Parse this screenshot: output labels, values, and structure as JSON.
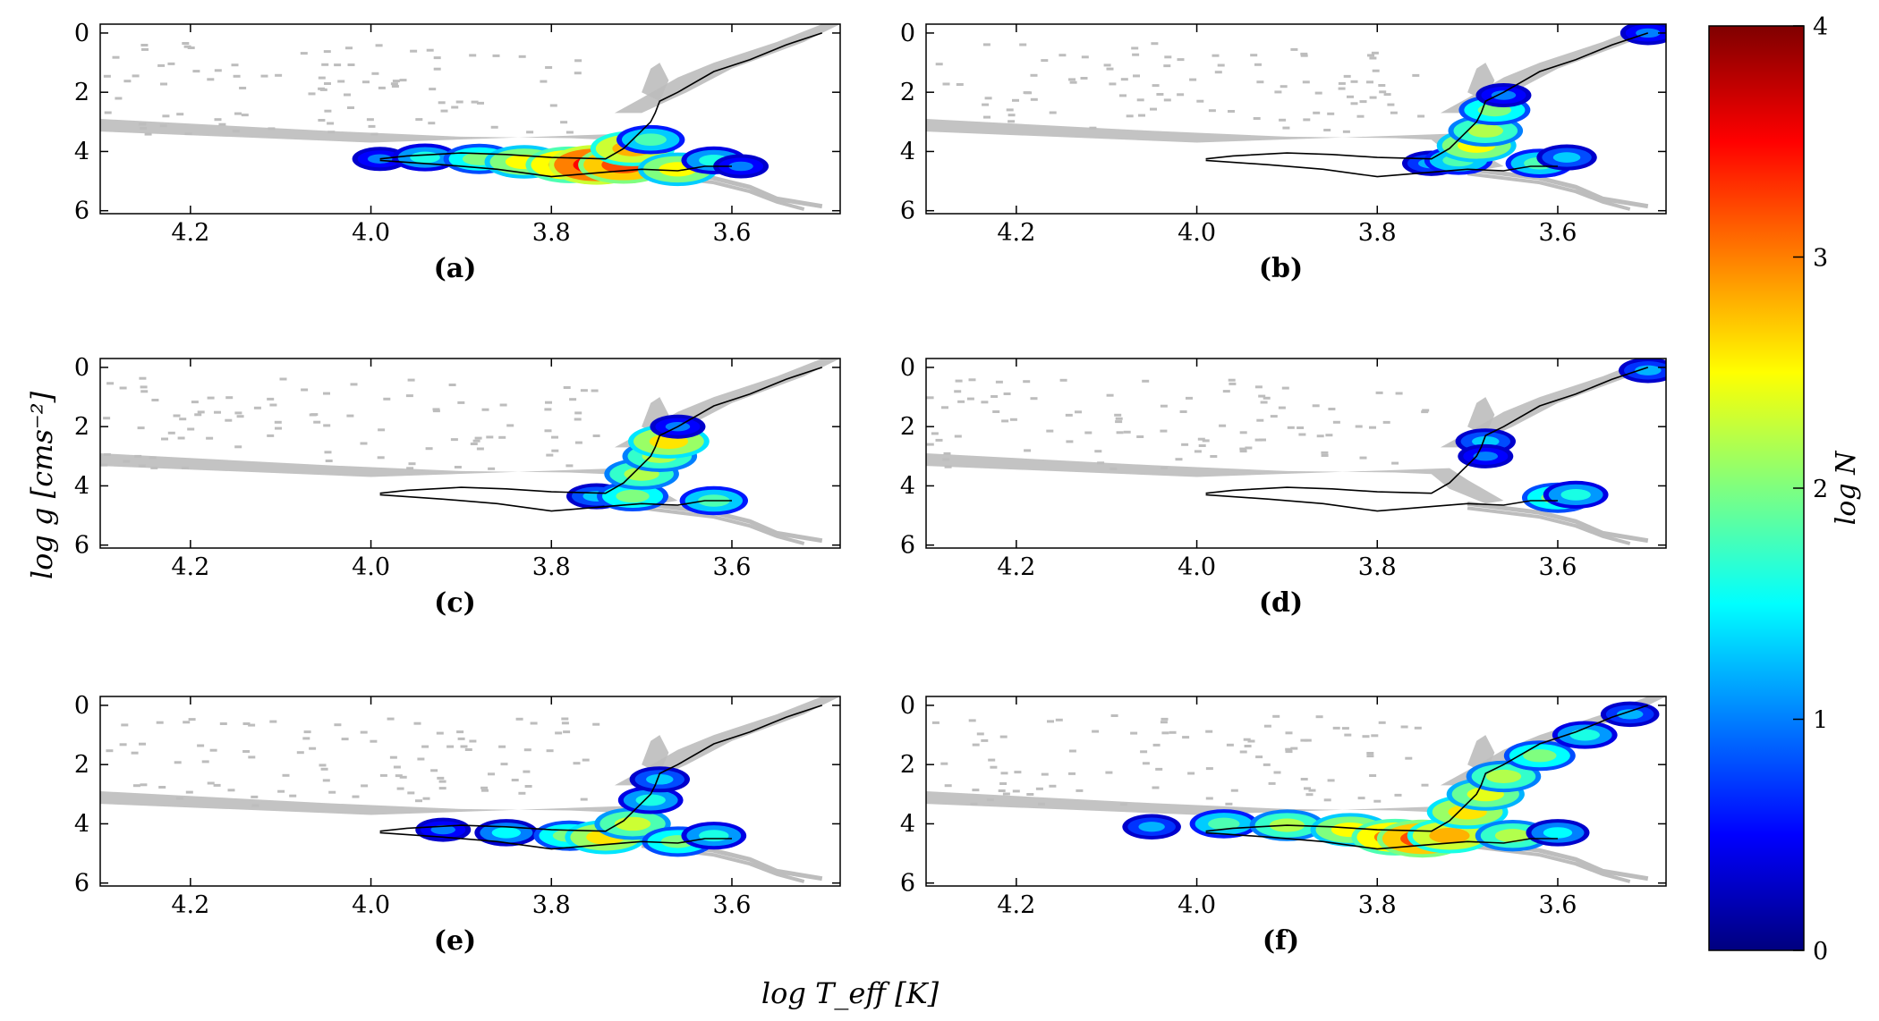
{
  "figure": {
    "ylabel": "log g [cms⁻²]",
    "xlabel": "log T_eff [K]",
    "colorbar": {
      "label": "log N",
      "range": [
        0,
        4
      ],
      "ticks": [
        0,
        1,
        2,
        3,
        4
      ],
      "colormap": "jet",
      "colors": [
        "#00007f",
        "#0000ff",
        "#007fff",
        "#00ffff",
        "#7fff7f",
        "#ffff00",
        "#ff7f00",
        "#ff0000",
        "#7f0000"
      ]
    },
    "background_color": "#bdbdbd",
    "contour_color": "#000000"
  },
  "chart_data": [
    {
      "panel": "(a)",
      "type": "heatmap",
      "xlim": [
        4.3,
        3.48
      ],
      "ylim": [
        6.1,
        -0.3
      ],
      "xticks": [
        4.2,
        4.0,
        3.8,
        3.6
      ],
      "yticks": [
        0,
        2,
        4,
        6
      ],
      "xlabel": "log T_eff [K]",
      "ylabel": "log g [cms^-2]",
      "density_peak_logN": 3.5,
      "density_ridge": [
        {
          "teff": 3.99,
          "logg": 4.25,
          "logN": 1.0
        },
        {
          "teff": 3.94,
          "logg": 4.2,
          "logN": 1.6
        },
        {
          "teff": 3.88,
          "logg": 4.25,
          "logN": 2.0
        },
        {
          "teff": 3.83,
          "logg": 4.35,
          "logN": 2.5
        },
        {
          "teff": 3.78,
          "logg": 4.45,
          "logN": 3.0
        },
        {
          "teff": 3.75,
          "logg": 4.45,
          "logN": 3.5
        },
        {
          "teff": 3.72,
          "logg": 4.45,
          "logN": 3.2
        },
        {
          "teff": 3.71,
          "logg": 3.9,
          "logN": 2.8
        },
        {
          "teff": 3.69,
          "logg": 3.6,
          "logN": 1.8
        },
        {
          "teff": 3.66,
          "logg": 4.6,
          "logN": 2.5
        },
        {
          "teff": 3.62,
          "logg": 4.3,
          "logN": 1.6
        },
        {
          "teff": 3.59,
          "logg": 4.5,
          "logN": 1.0
        }
      ]
    },
    {
      "panel": "(b)",
      "type": "heatmap",
      "xlim": [
        4.3,
        3.48
      ],
      "ylim": [
        6.1,
        -0.3
      ],
      "xticks": [
        4.2,
        4.0,
        3.8,
        3.6
      ],
      "yticks": [
        0,
        2,
        4,
        6
      ],
      "density_peak_logN": 2.7,
      "density_ridge": [
        {
          "teff": 3.74,
          "logg": 4.4,
          "logN": 1.2
        },
        {
          "teff": 3.71,
          "logg": 4.3,
          "logN": 1.8
        },
        {
          "teff": 3.69,
          "logg": 3.8,
          "logN": 2.5
        },
        {
          "teff": 3.68,
          "logg": 3.3,
          "logN": 2.2
        },
        {
          "teff": 3.67,
          "logg": 2.6,
          "logN": 2.0
        },
        {
          "teff": 3.66,
          "logg": 2.1,
          "logN": 1.0
        },
        {
          "teff": 3.62,
          "logg": 4.4,
          "logN": 1.8
        },
        {
          "teff": 3.59,
          "logg": 4.2,
          "logN": 1.3
        },
        {
          "teff": 3.5,
          "logg": 0.0,
          "logN": 1.0
        }
      ]
    },
    {
      "panel": "(c)",
      "type": "heatmap",
      "xlim": [
        4.3,
        3.48
      ],
      "ylim": [
        6.1,
        -0.3
      ],
      "xticks": [
        4.2,
        4.0,
        3.8,
        3.6
      ],
      "yticks": [
        0,
        2,
        4,
        6
      ],
      "density_peak_logN": 2.6,
      "density_ridge": [
        {
          "teff": 3.75,
          "logg": 4.35,
          "logN": 1.3
        },
        {
          "teff": 3.71,
          "logg": 4.35,
          "logN": 2.0
        },
        {
          "teff": 3.7,
          "logg": 3.6,
          "logN": 2.2
        },
        {
          "teff": 3.68,
          "logg": 3.0,
          "logN": 2.2
        },
        {
          "teff": 3.67,
          "logg": 2.5,
          "logN": 2.6
        },
        {
          "teff": 3.66,
          "logg": 2.0,
          "logN": 1.0
        },
        {
          "teff": 3.62,
          "logg": 4.5,
          "logN": 1.8
        }
      ]
    },
    {
      "panel": "(d)",
      "type": "heatmap",
      "xlim": [
        4.3,
        3.48
      ],
      "ylim": [
        6.1,
        -0.3
      ],
      "xticks": [
        4.2,
        4.0,
        3.8,
        3.6
      ],
      "yticks": [
        0,
        2,
        4,
        6
      ],
      "density_peak_logN": 2.0,
      "density_ridge": [
        {
          "teff": 3.68,
          "logg": 2.5,
          "logN": 1.3
        },
        {
          "teff": 3.68,
          "logg": 3.0,
          "logN": 1.0
        },
        {
          "teff": 3.6,
          "logg": 4.4,
          "logN": 2.0
        },
        {
          "teff": 3.58,
          "logg": 4.3,
          "logN": 1.6
        },
        {
          "teff": 3.5,
          "logg": 0.1,
          "logN": 1.2
        }
      ]
    },
    {
      "panel": "(e)",
      "type": "heatmap",
      "xlim": [
        4.3,
        3.48
      ],
      "ylim": [
        6.1,
        -0.3
      ],
      "xticks": [
        4.2,
        4.0,
        3.8,
        3.6
      ],
      "yticks": [
        0,
        2,
        4,
        6
      ],
      "density_peak_logN": 2.6,
      "density_ridge": [
        {
          "teff": 3.92,
          "logg": 4.2,
          "logN": 1.0
        },
        {
          "teff": 3.85,
          "logg": 4.3,
          "logN": 1.5
        },
        {
          "teff": 3.78,
          "logg": 4.4,
          "logN": 2.0
        },
        {
          "teff": 3.74,
          "logg": 4.45,
          "logN": 2.6
        },
        {
          "teff": 3.71,
          "logg": 4.0,
          "logN": 2.3
        },
        {
          "teff": 3.69,
          "logg": 3.2,
          "logN": 1.6
        },
        {
          "teff": 3.68,
          "logg": 2.5,
          "logN": 1.3
        },
        {
          "teff": 3.66,
          "logg": 4.6,
          "logN": 2.0
        },
        {
          "teff": 3.62,
          "logg": 4.4,
          "logN": 1.6
        }
      ]
    },
    {
      "panel": "(f)",
      "type": "heatmap",
      "xlim": [
        4.3,
        3.48
      ],
      "ylim": [
        6.1,
        -0.3
      ],
      "xticks": [
        4.2,
        4.0,
        3.8,
        3.6
      ],
      "yticks": [
        0,
        2,
        4,
        6
      ],
      "density_peak_logN": 3.2,
      "density_ridge": [
        {
          "teff": 4.05,
          "logg": 4.1,
          "logN": 1.2
        },
        {
          "teff": 3.97,
          "logg": 4.0,
          "logN": 1.8
        },
        {
          "teff": 3.9,
          "logg": 4.05,
          "logN": 2.2
        },
        {
          "teff": 3.83,
          "logg": 4.2,
          "logN": 2.5
        },
        {
          "teff": 3.78,
          "logg": 4.45,
          "logN": 3.0
        },
        {
          "teff": 3.75,
          "logg": 4.5,
          "logN": 3.2
        },
        {
          "teff": 3.72,
          "logg": 4.4,
          "logN": 2.8
        },
        {
          "teff": 3.7,
          "logg": 3.6,
          "logN": 2.6
        },
        {
          "teff": 3.68,
          "logg": 3.0,
          "logN": 2.4
        },
        {
          "teff": 3.66,
          "logg": 2.4,
          "logN": 2.2
        },
        {
          "teff": 3.62,
          "logg": 1.7,
          "logN": 2.0
        },
        {
          "teff": 3.57,
          "logg": 1.0,
          "logN": 1.6
        },
        {
          "teff": 3.52,
          "logg": 0.3,
          "logN": 1.2
        },
        {
          "teff": 3.65,
          "logg": 4.4,
          "logN": 2.2
        },
        {
          "teff": 3.6,
          "logg": 4.3,
          "logN": 1.5
        }
      ]
    }
  ]
}
